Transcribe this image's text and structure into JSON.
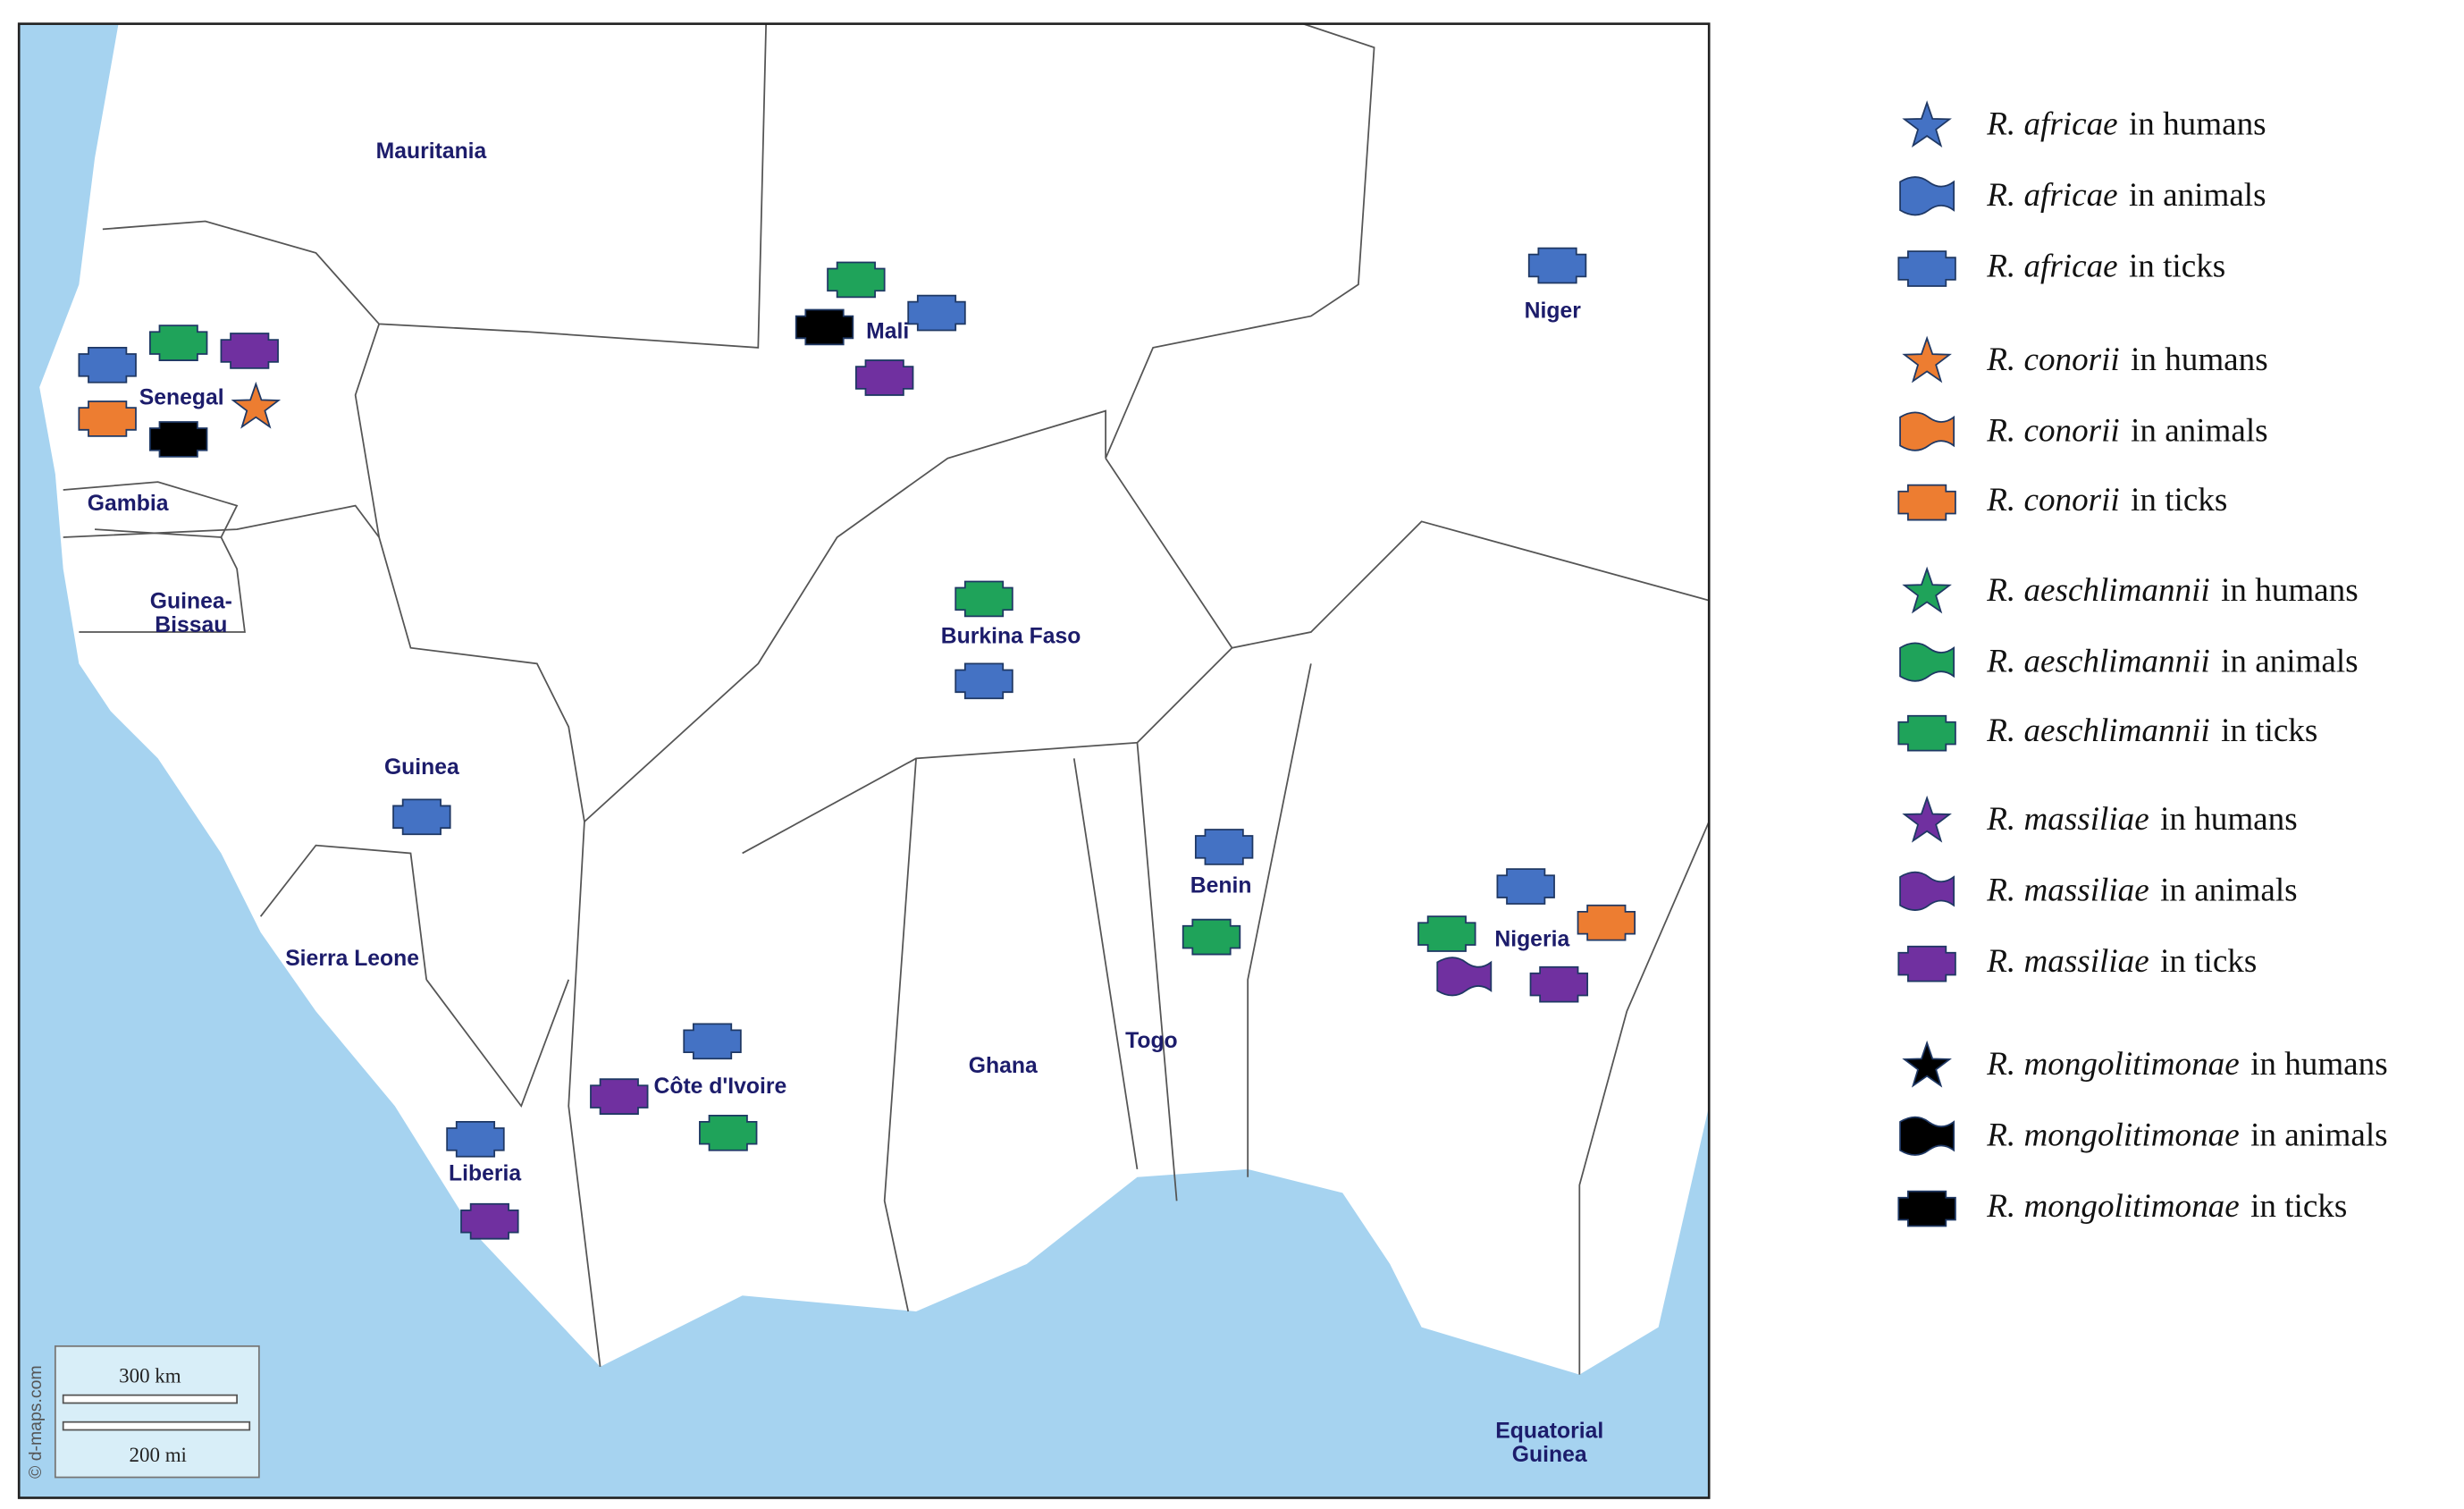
{
  "map": {
    "countries": [
      {
        "lines": [
          "Mauritania"
        ]
      },
      {
        "lines": [
          "Senegal"
        ]
      },
      {
        "lines": [
          "Gambia"
        ]
      },
      {
        "lines": [
          "Guinea-",
          "Bissau"
        ]
      },
      {
        "lines": [
          "Mali"
        ]
      },
      {
        "lines": [
          "Niger"
        ]
      },
      {
        "lines": [
          "Burkina Faso"
        ]
      },
      {
        "lines": [
          "Guinea"
        ]
      },
      {
        "lines": [
          "Sierra Leone"
        ]
      },
      {
        "lines": [
          "Benin"
        ]
      },
      {
        "lines": [
          "Nigeria"
        ]
      },
      {
        "lines": [
          "Côte d'Ivoire"
        ]
      },
      {
        "lines": [
          "Ghana"
        ]
      },
      {
        "lines": [
          "Togo"
        ]
      },
      {
        "lines": [
          "Liberia"
        ]
      },
      {
        "lines": [
          "Equatorial",
          "Guinea"
        ]
      }
    ],
    "scale_bar": {
      "top": "300 km",
      "bottom": "200 mi"
    },
    "credit": "© d-maps.com"
  },
  "legend": [
    {
      "species": "R. africae",
      "host": "in humans"
    },
    {
      "species": "R. africae",
      "host": "in animals"
    },
    {
      "species": "R. africae",
      "host": "in ticks"
    },
    {
      "species": "R. conorii",
      "host": "in humans"
    },
    {
      "species": "R. conorii",
      "host": "in animals"
    },
    {
      "species": "R. conorii",
      "host": "in ticks"
    },
    {
      "species": "R. aeschlimannii",
      "host": "in humans"
    },
    {
      "species": "R. aeschlimannii",
      "host": "in animals"
    },
    {
      "species": "R. aeschlimannii",
      "host": "in ticks"
    },
    {
      "species": "R. massiliae",
      "host": "in humans"
    },
    {
      "species": "R. massiliae",
      "host": "in animals"
    },
    {
      "species": "R. massiliae",
      "host": "in ticks"
    },
    {
      "species": "R. mongolitimonae",
      "host": "in humans"
    },
    {
      "species": "R. mongolitimonae",
      "host": "in animals"
    },
    {
      "species": "R. mongolitimonae",
      "host": "in ticks"
    }
  ]
}
